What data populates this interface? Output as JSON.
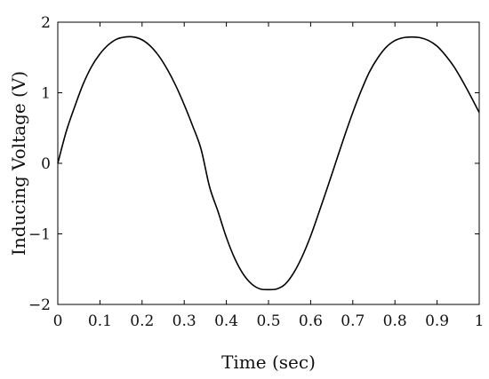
{
  "chart_data": {
    "type": "line",
    "title": "",
    "xlabel": "Time (sec)",
    "ylabel": "Inducing Voltage (V)",
    "xlim": [
      0,
      1
    ],
    "ylim": [
      -2,
      2
    ],
    "grid": false,
    "x_ticks": [
      0,
      0.1,
      0.2,
      0.3,
      0.4,
      0.5,
      0.6,
      0.7,
      0.8,
      0.9,
      1
    ],
    "x_tick_labels": [
      "0",
      "0.1",
      "0.2",
      "0.3",
      "0.4",
      "0.5",
      "0.6",
      "0.7",
      "0.8",
      "0.9",
      "1"
    ],
    "y_ticks": [
      -2,
      -1,
      0,
      1,
      2
    ],
    "y_tick_labels": [
      "−2",
      "−1",
      "0",
      "1",
      "2"
    ],
    "series": [
      {
        "color": "#000000",
        "x": [
          0,
          0.02,
          0.04,
          0.06,
          0.08,
          0.1,
          0.12,
          0.14,
          0.16,
          0.18,
          0.2,
          0.22,
          0.24,
          0.26,
          0.28,
          0.3,
          0.32,
          0.34,
          0.36,
          0.38,
          0.4,
          0.42,
          0.44,
          0.46,
          0.48,
          0.5,
          0.52,
          0.54,
          0.56,
          0.58,
          0.6,
          0.62,
          0.64,
          0.66,
          0.68,
          0.7,
          0.72,
          0.74,
          0.76,
          0.78,
          0.8,
          0.82,
          0.84,
          0.86,
          0.88,
          0.9,
          0.92,
          0.94,
          0.96,
          0.98,
          1.0
        ],
        "y": [
          0.0,
          0.45,
          0.8,
          1.12,
          1.37,
          1.55,
          1.68,
          1.76,
          1.79,
          1.79,
          1.75,
          1.66,
          1.52,
          1.33,
          1.1,
          0.83,
          0.53,
          0.2,
          -0.33,
          -0.68,
          -1.05,
          -1.35,
          -1.57,
          -1.71,
          -1.78,
          -1.79,
          -1.78,
          -1.71,
          -1.55,
          -1.32,
          -1.03,
          -0.69,
          -0.34,
          0.02,
          0.38,
          0.72,
          1.03,
          1.3,
          1.5,
          1.65,
          1.74,
          1.78,
          1.79,
          1.78,
          1.74,
          1.66,
          1.53,
          1.37,
          1.17,
          0.95,
          0.72
        ]
      }
    ]
  }
}
